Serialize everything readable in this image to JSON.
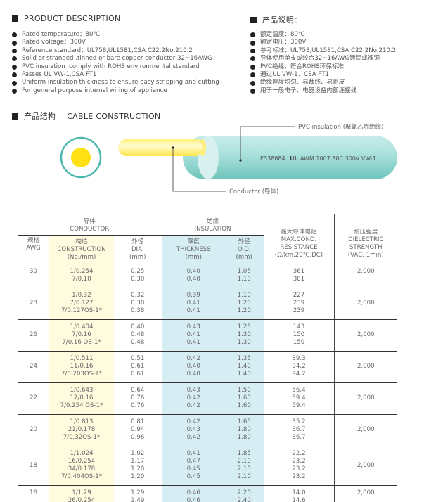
{
  "desc_en": {
    "title": "PRODUCT DESCRIPTION",
    "items": [
      "Rated temperature：80℃",
      "Rated voltage：300V",
      "Reference standard：UL758,UL1581,CSA C22.2No.210.2",
      "Solid or stranded ,tinned or bare copper conductor 32~16AWG",
      "PVC insulation ,comply with ROHS environmental standard",
      "Passes UL VW-1,CSA FT1",
      "Uniform insulation thickness to ensure easy stripping and cutting",
      "For general purpose internal wiring of appliance"
    ]
  },
  "desc_cn": {
    "title": "产品说明：",
    "items": [
      "额定温度：80℃",
      "额定电压：300V",
      "参考标准：UL758,UL1581,CSA C22.2No.210.2",
      "导体使用单支或绞合32~16AWG镀锡或裸铜",
      "PVC绝缘、符合ROHS环保标准",
      "通过UL VW-1、CSA FT1",
      "绝缘厚度均匀、易裁线、易剥皮",
      "用于一般电子、电器设备内部连接线"
    ]
  },
  "construction": {
    "title_cn": "产品结构",
    "title_en": "CABLE CONSTRUCTION",
    "insulation_label": "PVC insulation (聚氯乙烯绝缘)",
    "conductor_label": "Conductor (导体)",
    "cable_print_left": "E338684",
    "cable_print_logo": "UL",
    "cable_print_right": "AWM 1007 80C 300V VW-1",
    "colors": {
      "insulation": "#8fd4cd",
      "conductor": "#ffe319"
    }
  },
  "table": {
    "groups": {
      "conductor_cn": "导体",
      "conductor_en": "CONDUCTOR",
      "insulation_cn": "绝缘",
      "insulation_en": "INSULATION"
    },
    "headers": {
      "awg": [
        "规格",
        "AWG"
      ],
      "construction": [
        "构造",
        "CONSTRUCTION",
        "(No./mm)"
      ],
      "dia": [
        "外径",
        "DIA.",
        "(mm)"
      ],
      "thickness": [
        "厚度",
        "THICKNESS",
        "(mm)"
      ],
      "od": [
        "外径",
        "O.D.",
        "(mm)"
      ],
      "resistance": [
        "最大导体电阻",
        "MAX.COND.",
        "RESISTANCE",
        "(Ω/km,20℃,DC)"
      ],
      "dielectric": [
        "耐压强度",
        "DIELECTRIC",
        "STRENGTH",
        "(VAC, 1min)"
      ]
    },
    "rows": [
      {
        "awg": "30",
        "construction": [
          "1/0.254",
          "7/0.10"
        ],
        "dia": [
          "0.25",
          "0.30"
        ],
        "thickness": [
          "0.40",
          "0.40"
        ],
        "od": [
          "1.05",
          "1.10"
        ],
        "resistance": [
          "361",
          "381"
        ],
        "dielectric": "2,000"
      },
      {
        "awg": "28",
        "construction": [
          "1/0.32",
          "7/0.127",
          "7/0.127OS-1*"
        ],
        "dia": [
          "0.32",
          "0.38",
          "0.38"
        ],
        "thickness": [
          "0.39",
          "0.41",
          "0.41"
        ],
        "od": [
          "1.10",
          "1.20",
          "1.20"
        ],
        "resistance": [
          "227",
          "239",
          "239"
        ],
        "dielectric": "2,000"
      },
      {
        "awg": "26",
        "construction": [
          "1/0.404",
          "7/0.16",
          "7/0.16 OS-1*"
        ],
        "dia": [
          "0.40",
          "0.48",
          "0.48"
        ],
        "thickness": [
          "0.43",
          "0.41",
          "0.41"
        ],
        "od": [
          "1.25",
          "1.30",
          "1.30"
        ],
        "resistance": [
          "143",
          "150",
          "150"
        ],
        "dielectric": "2,000"
      },
      {
        "awg": "24",
        "construction": [
          "1/0.511",
          "11/0.16",
          "7/0.203OS-1*"
        ],
        "dia": [
          "0.51",
          "0.61",
          "0.61"
        ],
        "thickness": [
          "0.42",
          "0.40",
          "0.40"
        ],
        "od": [
          "1.35",
          "1.40",
          "1.40"
        ],
        "resistance": [
          "89.3",
          "94.2",
          "94.2"
        ],
        "dielectric": "2,000"
      },
      {
        "awg": "22",
        "construction": [
          "1/0.643",
          "17/0.16",
          "7/0.254 OS-1*"
        ],
        "dia": [
          "0.64",
          "0.76",
          "0.76"
        ],
        "thickness": [
          "0.43",
          "0.42",
          "0.42"
        ],
        "od": [
          "1.50",
          "1.60",
          "1.60"
        ],
        "resistance": [
          "56.4",
          "59.4",
          "59.4"
        ],
        "dielectric": "2,000"
      },
      {
        "awg": "20",
        "construction": [
          "1/0.813",
          "21/0.178",
          "7/0.32OS-1*"
        ],
        "dia": [
          "0.81",
          "0.94",
          "0.96"
        ],
        "thickness": [
          "0.42",
          "0.43",
          "0.42"
        ],
        "od": [
          "1.65",
          "1.80",
          "1.80"
        ],
        "resistance": [
          "35.2",
          "36.7",
          "36.7"
        ],
        "dielectric": "2,000"
      },
      {
        "awg": "18",
        "construction": [
          "1/1.024",
          "16/0.254",
          "34/0.178",
          "7/0.404OS-1*"
        ],
        "dia": [
          "1.02",
          "1.17",
          "1.20",
          "1.20"
        ],
        "thickness": [
          "0.41",
          "0.47",
          "0.45",
          "0.45"
        ],
        "od": [
          "1.85",
          "2.10",
          "2.10",
          "2.10"
        ],
        "resistance": [
          "22.2",
          "23.2",
          "23.2",
          "23.2"
        ],
        "dielectric": "2,000"
      },
      {
        "awg": "16",
        "construction": [
          "1/1.29",
          "26/0.254"
        ],
        "dia": [
          "1.29",
          "1.49"
        ],
        "thickness": [
          "0.46",
          "0.46"
        ],
        "od": [
          "2.20",
          "2.40"
        ],
        "resistance": [
          "14.0",
          "14.6"
        ],
        "dielectric": "2,000"
      }
    ]
  }
}
